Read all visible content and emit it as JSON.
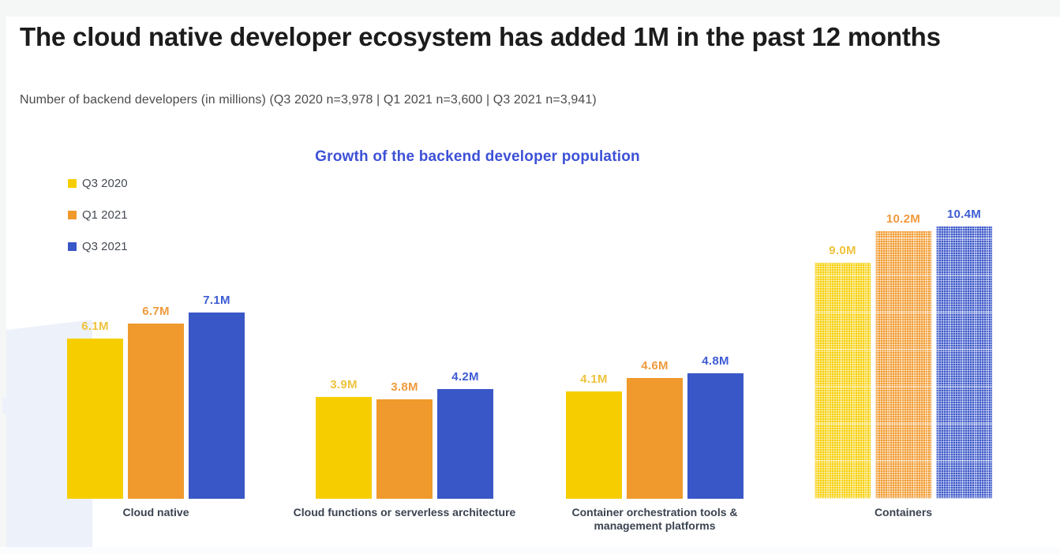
{
  "page": {
    "title": "The cloud native developer ecosystem has added 1M in the past 12 months",
    "subtitle": "Number of backend developers (in millions) (Q3 2020 n=3,978 | Q1 2021 n=3,600 | Q3 2021 n=3,941)"
  },
  "chart_data": {
    "type": "bar",
    "title": "Growth of the backend developer population",
    "title_color": "#3d51d6",
    "unit": "M",
    "categories": [
      "Cloud native",
      "Cloud functions or serverless architecture",
      "Container orchestration tools & management platforms",
      "Containers"
    ],
    "series": [
      {
        "name": "Q3 2020",
        "color": "#f6ce00",
        "label_color": "#efc23c",
        "values": [
          6.1,
          3.9,
          4.1,
          9.0
        ]
      },
      {
        "name": "Q1 2021",
        "color": "#f0992c",
        "label_color": "#f0993c",
        "values": [
          6.7,
          3.8,
          4.6,
          10.2
        ]
      },
      {
        "name": "Q3 2021",
        "color": "#3a57c8",
        "label_color": "#3d5bd3",
        "values": [
          7.1,
          4.2,
          4.8,
          10.4
        ]
      }
    ],
    "data_labels": [
      "6.1M",
      "6.7M",
      "7.1M",
      "3.9M",
      "3.8M",
      "4.2M",
      "4.1M",
      "4.6M",
      "4.8M",
      "9.0M",
      "10.2M",
      "10.4M"
    ],
    "pattern_fill_categories": [
      "Containers"
    ],
    "pattern_style": "dotted-halftone",
    "legend_position": "top-left",
    "grid": false,
    "axis_lines": false,
    "ylim": [
      0,
      11
    ]
  },
  "decor": {
    "watermark_color": "#edf1fa"
  }
}
